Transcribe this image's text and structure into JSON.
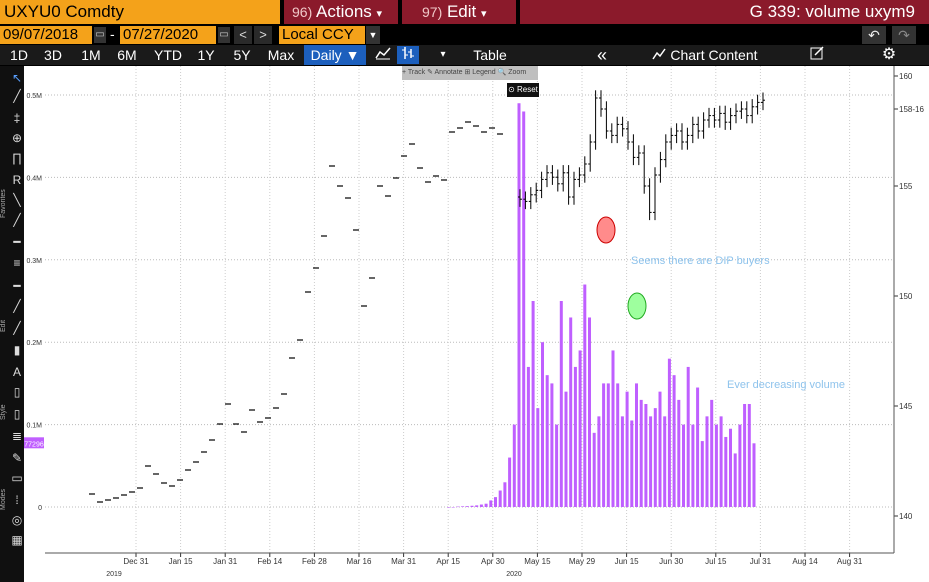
{
  "header": {
    "ticker": "UXYU0 Comdty",
    "actions_num": "96)",
    "actions_label": "Actions",
    "edit_num": "97)",
    "edit_label": "Edit",
    "dropdown_glyph": "▾",
    "title": "G 339: volume uxym9"
  },
  "daterow": {
    "start_date": "09/07/2018",
    "end_date": "07/27/2020",
    "separator": "-",
    "prev": "<",
    "next": ">",
    "currency": "Local CCY",
    "currency_dd": "▼",
    "undo": "↶",
    "redo": "↷"
  },
  "periodbar": {
    "periods": [
      "1D",
      "3D",
      "1M",
      "6M",
      "YTD",
      "1Y",
      "5Y",
      "Max"
    ],
    "frequency": "Daily ▼",
    "line_icon": "line-chart-icon",
    "bar_icon": "ohlc-bar-icon",
    "dropdown": "▾",
    "table": "Table",
    "collapse": "«",
    "chart_content": "Chart Content",
    "edit_icon": "edit-icon",
    "settings_icon": "gear-icon"
  },
  "plot_toolbar": {
    "items": "+ Track  ✎ Annotate  ⊞ Legend  🔍 Zoom",
    "reset": "⊙ Reset"
  },
  "lefttoolbar": {
    "categories": [
      "Favorites",
      "Edit",
      "Style",
      "Modes"
    ]
  },
  "annotations": {
    "dip": "Seems there are DIP buyers",
    "decreasing": "Ever decreasing volume"
  },
  "chart_data": {
    "type": "bar",
    "description_type": "ohlc price bars with volume histogram",
    "left_axis_ticks": [
      "0.5M",
      "0.4M",
      "0.3M",
      "0.2M",
      "0.1M",
      "0"
    ],
    "left_axis_values": [
      500000,
      400000,
      300000,
      200000,
      100000,
      0
    ],
    "right_axis_ticks": [
      "160",
      "158-16",
      "155",
      "150",
      "145",
      "140"
    ],
    "right_axis_values": [
      160,
      158.5,
      155,
      150,
      145,
      140
    ],
    "last_volume_label": "77296",
    "x_ticks": [
      "Dec 31",
      "Jan 15",
      "Jan 31",
      "Feb 14",
      "Feb 28",
      "Mar 16",
      "Mar 31",
      "Apr 15",
      "Apr 30",
      "May 15",
      "May 29",
      "Jun 15",
      "Jun 30",
      "Jul 15",
      "Jul 31",
      "Aug 14",
      "Aug 31"
    ],
    "year_labels": [
      "2019",
      "2020"
    ],
    "ylim_volume": [
      0,
      500000
    ],
    "ylim_price": [
      140,
      160
    ],
    "volume_color": "#bf5fff",
    "price_color": "#000000",
    "volume": [
      0,
      0,
      500,
      800,
      1000,
      1500,
      2000,
      3000,
      4000,
      8000,
      12000,
      20000,
      30000,
      60000,
      100000,
      490000,
      480000,
      170000,
      250000,
      120000,
      200000,
      160000,
      150000,
      100000,
      250000,
      140000,
      230000,
      170000,
      190000,
      270000,
      230000,
      90000,
      110000,
      150000,
      150000,
      190000,
      150000,
      110000,
      140000,
      105000,
      150000,
      130000,
      125000,
      110000,
      120000,
      140000,
      110000,
      180000,
      160000,
      130000,
      100000,
      170000,
      100000,
      145000,
      80000,
      110000,
      130000,
      100000,
      110000,
      85000,
      95000,
      65000,
      100000,
      125000,
      125000,
      77296
    ],
    "price_open": [
      154.5,
      154.4,
      154.3,
      154.6,
      154.8,
      155.3,
      155.6,
      155.4,
      155.1,
      155.6,
      154.5,
      155.3,
      155.5,
      156.0,
      157.0,
      159.0,
      158.5,
      157.5,
      157.3,
      157.8,
      157.6,
      157.0,
      156.3,
      156.5,
      155.0,
      153.8,
      155.5,
      156.2,
      157.0,
      157.3,
      157.5,
      157.0,
      157.3,
      157.8,
      157.5,
      158.0,
      158.2,
      158.0,
      158.3,
      157.9,
      158.2,
      158.4,
      158.5,
      158.2,
      158.6,
      158.8
    ],
    "price_close": [
      154.4,
      154.3,
      154.6,
      154.8,
      155.3,
      155.6,
      155.4,
      155.1,
      155.6,
      154.5,
      155.3,
      155.5,
      156.0,
      157.0,
      159.0,
      158.5,
      157.5,
      157.3,
      157.8,
      157.6,
      157.0,
      156.3,
      156.5,
      155.0,
      153.8,
      155.5,
      156.2,
      157.0,
      157.3,
      157.5,
      157.0,
      157.3,
      157.8,
      157.5,
      158.0,
      158.2,
      158.0,
      158.3,
      157.9,
      158.2,
      158.4,
      158.5,
      158.2,
      158.6,
      158.8,
      158.9
    ]
  }
}
